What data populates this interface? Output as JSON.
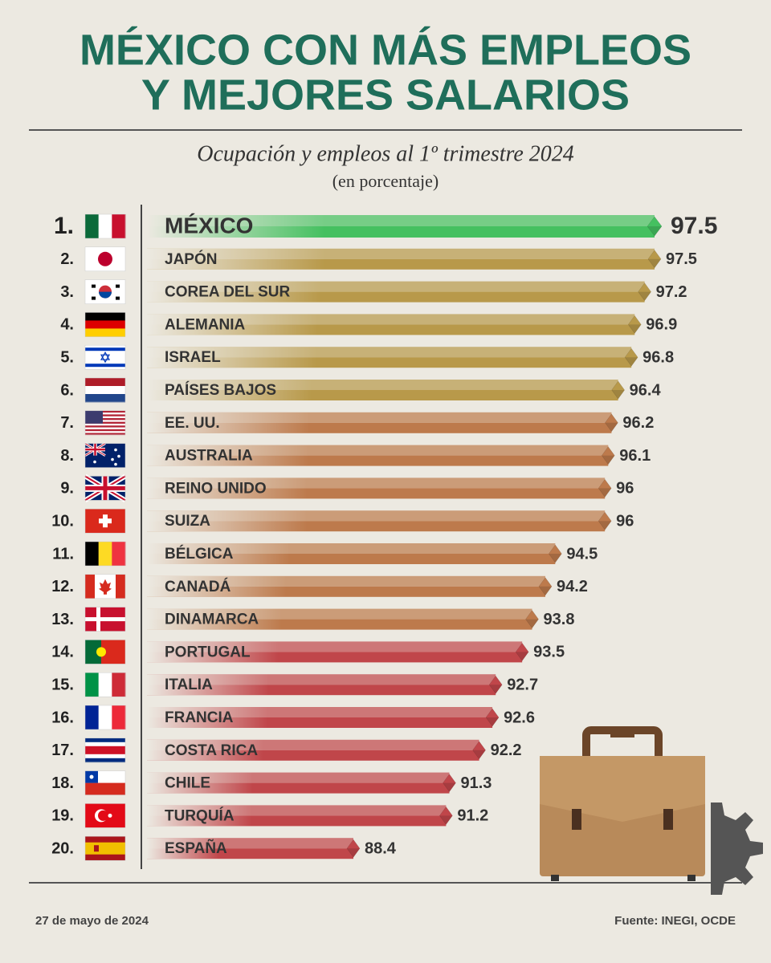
{
  "chart_data": {
    "type": "bar",
    "orientation": "horizontal",
    "title": [
      "MÉXICO CON MÁS EMPLEOS",
      "Y MEJORES SALARIOS"
    ],
    "subtitle": "Ocupación y empleos al 1º trimestre 2024",
    "unit_note": "(en porcentaje)",
    "ranks": [
      "1.",
      "2.",
      "3.",
      "4.",
      "5.",
      "6.",
      "7.",
      "8.",
      "9.",
      "10.",
      "11.",
      "12.",
      "13.",
      "14.",
      "15.",
      "16.",
      "17.",
      "18.",
      "19.",
      "20."
    ],
    "categories": [
      "MÉXICO",
      "JAPÓN",
      "COREA DEL SUR",
      "ALEMANIA",
      "ISRAEL",
      "PAÍSES BAJOS",
      "EE. UU.",
      "AUSTRALIA",
      "REINO UNIDO",
      "SUIZA",
      "BÉLGICA",
      "CANADÁ",
      "DINAMARCA",
      "PORTUGAL",
      "ITALIA",
      "FRANCIA",
      "COSTA RICA",
      "CHILE",
      "TURQUÍA",
      "ESPAÑA"
    ],
    "values": [
      97.5,
      97.5,
      97.2,
      96.9,
      96.8,
      96.4,
      96.2,
      96.1,
      96,
      96,
      94.5,
      94.2,
      93.8,
      93.5,
      92.7,
      92.6,
      92.2,
      91.3,
      91.2,
      88.4
    ],
    "colors": [
      "#45c060",
      "#b8994a",
      "#b8994a",
      "#b8994a",
      "#b8994a",
      "#b8994a",
      "#bd7a4c",
      "#bd7a4c",
      "#bd7a4c",
      "#bd7a4c",
      "#bd7a4c",
      "#bd7a4c",
      "#bd7a4c",
      "#c0464a",
      "#c0464a",
      "#c0464a",
      "#c0464a",
      "#c0464a",
      "#c0464a",
      "#c0464a"
    ],
    "date": "27 de mayo de 2024",
    "source": "Fuente: INEGI, OCDE"
  }
}
